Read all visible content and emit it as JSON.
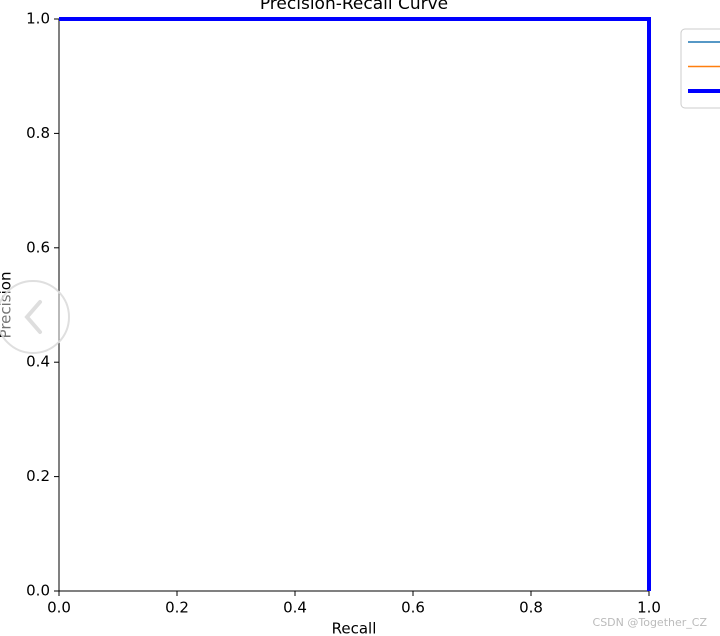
{
  "chart_data": {
    "type": "line",
    "title": "Precision-Recall Curve",
    "x_label": "Recall",
    "y_label": "Precision",
    "x": [
      0,
      1,
      1
    ],
    "series": [
      {
        "color": "#1f77b4",
        "values": [
          1,
          1,
          0
        ]
      },
      {
        "color": "#ff7f0e",
        "values": [
          1,
          1,
          0
        ]
      },
      {
        "color": "#0000ff",
        "values": [
          1,
          1,
          0
        ]
      }
    ],
    "xlim": [
      0,
      1
    ],
    "ylim": [
      0,
      1
    ],
    "xticks": [
      {
        "value": 0,
        "label": "0.0"
      },
      0.2,
      0.4,
      0.6,
      0.8,
      {
        "value": 1,
        "label": "1.0"
      }
    ],
    "yticks": [
      {
        "value": 0,
        "label": "0.0"
      },
      0.2,
      0.4,
      0.6,
      0.8,
      {
        "value": 1,
        "label": "1.0"
      }
    ],
    "grid": false,
    "legend": "upper right",
    "watermark": "CSDN @Together_CZ"
  }
}
